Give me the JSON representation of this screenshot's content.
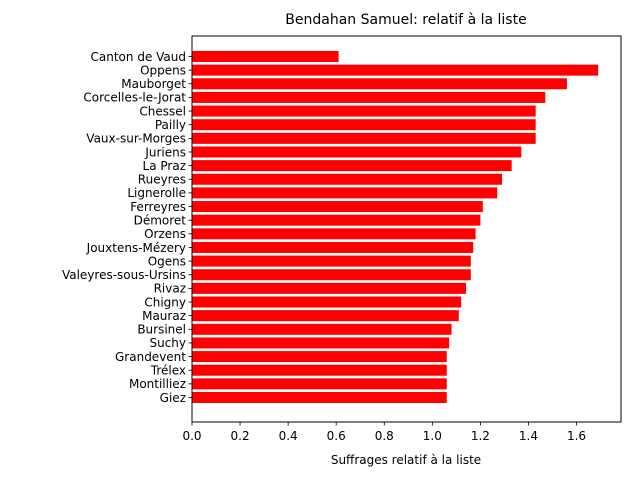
{
  "chart_data": {
    "type": "bar",
    "orientation": "horizontal",
    "title": "Bendahan Samuel: relatif à la liste",
    "xlabel": "Suffrages relatif à la liste",
    "ylabel": "",
    "xlim": [
      0,
      1.785
    ],
    "xticks": [
      0.0,
      0.2,
      0.4,
      0.6,
      0.8,
      1.0,
      1.2,
      1.4,
      1.6
    ],
    "xtick_labels": [
      "0.0",
      "0.2",
      "0.4",
      "0.6",
      "0.8",
      "1.0",
      "1.2",
      "1.4",
      "1.6"
    ],
    "bar_color": "#ff0000",
    "grid": false,
    "categories": [
      "Canton de Vaud",
      "Oppens",
      "Mauborget",
      "Corcelles-le-Jorat",
      "Chessel",
      "Pailly",
      "Vaux-sur-Morges",
      "Juriens",
      "La Praz",
      "Rueyres",
      "Lignerolle",
      "Ferreyres",
      "Démoret",
      "Orzens",
      "Jouxtens-Mézery",
      "Ogens",
      "Valeyres-sous-Ursins",
      "Rivaz",
      "Chigny",
      "Mauraz",
      "Bursinel",
      "Suchy",
      "Grandevent",
      "Trélex",
      "Montilliez",
      "Giez"
    ],
    "values": [
      0.61,
      1.69,
      1.56,
      1.47,
      1.43,
      1.43,
      1.43,
      1.37,
      1.33,
      1.29,
      1.27,
      1.21,
      1.2,
      1.18,
      1.17,
      1.16,
      1.16,
      1.14,
      1.12,
      1.11,
      1.08,
      1.07,
      1.06,
      1.06,
      1.06,
      1.06
    ]
  }
}
